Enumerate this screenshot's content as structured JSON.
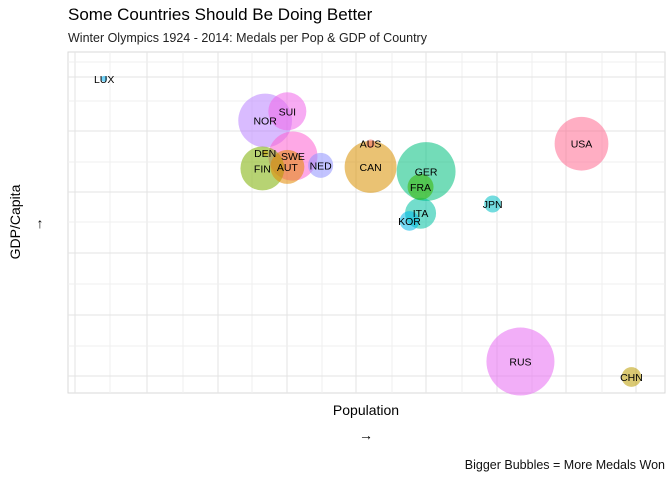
{
  "chart_data": {
    "type": "scatter",
    "title": "Some Countries Should Be Doing Better",
    "subtitle": "Winter Olympics 1924 - 2014: Medals per Pop & GDP of Country",
    "caption": "Bigger Bubbles = More Medals Won",
    "xlabel": "Population",
    "ylabel": "GDP/Capita",
    "x_arrow": "→",
    "y_arrow": "↑",
    "grid": true,
    "legend": "none",
    "xlim": [
      0,
      100
    ],
    "ylim": [
      0,
      100
    ],
    "tick_labels_shown": false,
    "points": [
      {
        "label": "LUX",
        "x": 4,
        "y": 96.5,
        "size": 1,
        "color": "#00B0F6"
      },
      {
        "label": "SUI",
        "x": 37,
        "y": 86,
        "size": 150,
        "color": "#F066EA"
      },
      {
        "label": "NOR",
        "x": 33,
        "y": 83,
        "size": 300,
        "color": "#B983FF"
      },
      {
        "label": "AUS",
        "x": 52,
        "y": 75.5,
        "size": 8,
        "color": "#F8766D"
      },
      {
        "label": "USA",
        "x": 90,
        "y": 75.5,
        "size": 300,
        "color": "#FF6C91"
      },
      {
        "label": "DEN",
        "x": 33,
        "y": 72.5,
        "size": 4,
        "color": "#C99800"
      },
      {
        "label": "SWE",
        "x": 38,
        "y": 71.5,
        "size": 250,
        "color": "#FD61D1"
      },
      {
        "label": "NED",
        "x": 43,
        "y": 68.5,
        "size": 65,
        "color": "#8F91FF"
      },
      {
        "label": "FIN",
        "x": 32.5,
        "y": 67.5,
        "size": 200,
        "color": "#7CAE00"
      },
      {
        "label": "AUT",
        "x": 37,
        "y": 68,
        "size": 120,
        "color": "#E38900"
      },
      {
        "label": "CAN",
        "x": 52,
        "y": 68,
        "size": 280,
        "color": "#D89000"
      },
      {
        "label": "GER",
        "x": 62,
        "y": 66.5,
        "size": 360,
        "color": "#00BF7D"
      },
      {
        "label": "FRA",
        "x": 61,
        "y": 61.5,
        "size": 70,
        "color": "#39B600"
      },
      {
        "label": "JPN",
        "x": 74,
        "y": 56,
        "size": 30,
        "color": "#00BFC4"
      },
      {
        "label": "ITA",
        "x": 61,
        "y": 53,
        "size": 100,
        "color": "#00C1A3"
      },
      {
        "label": "KOR",
        "x": 59,
        "y": 50.5,
        "size": 40,
        "color": "#00B8E7"
      },
      {
        "label": "RUS",
        "x": 79,
        "y": 5,
        "size": 480,
        "color": "#E76BF3"
      },
      {
        "label": "CHN",
        "x": 99,
        "y": 0,
        "size": 40,
        "color": "#BB9D00"
      }
    ]
  }
}
